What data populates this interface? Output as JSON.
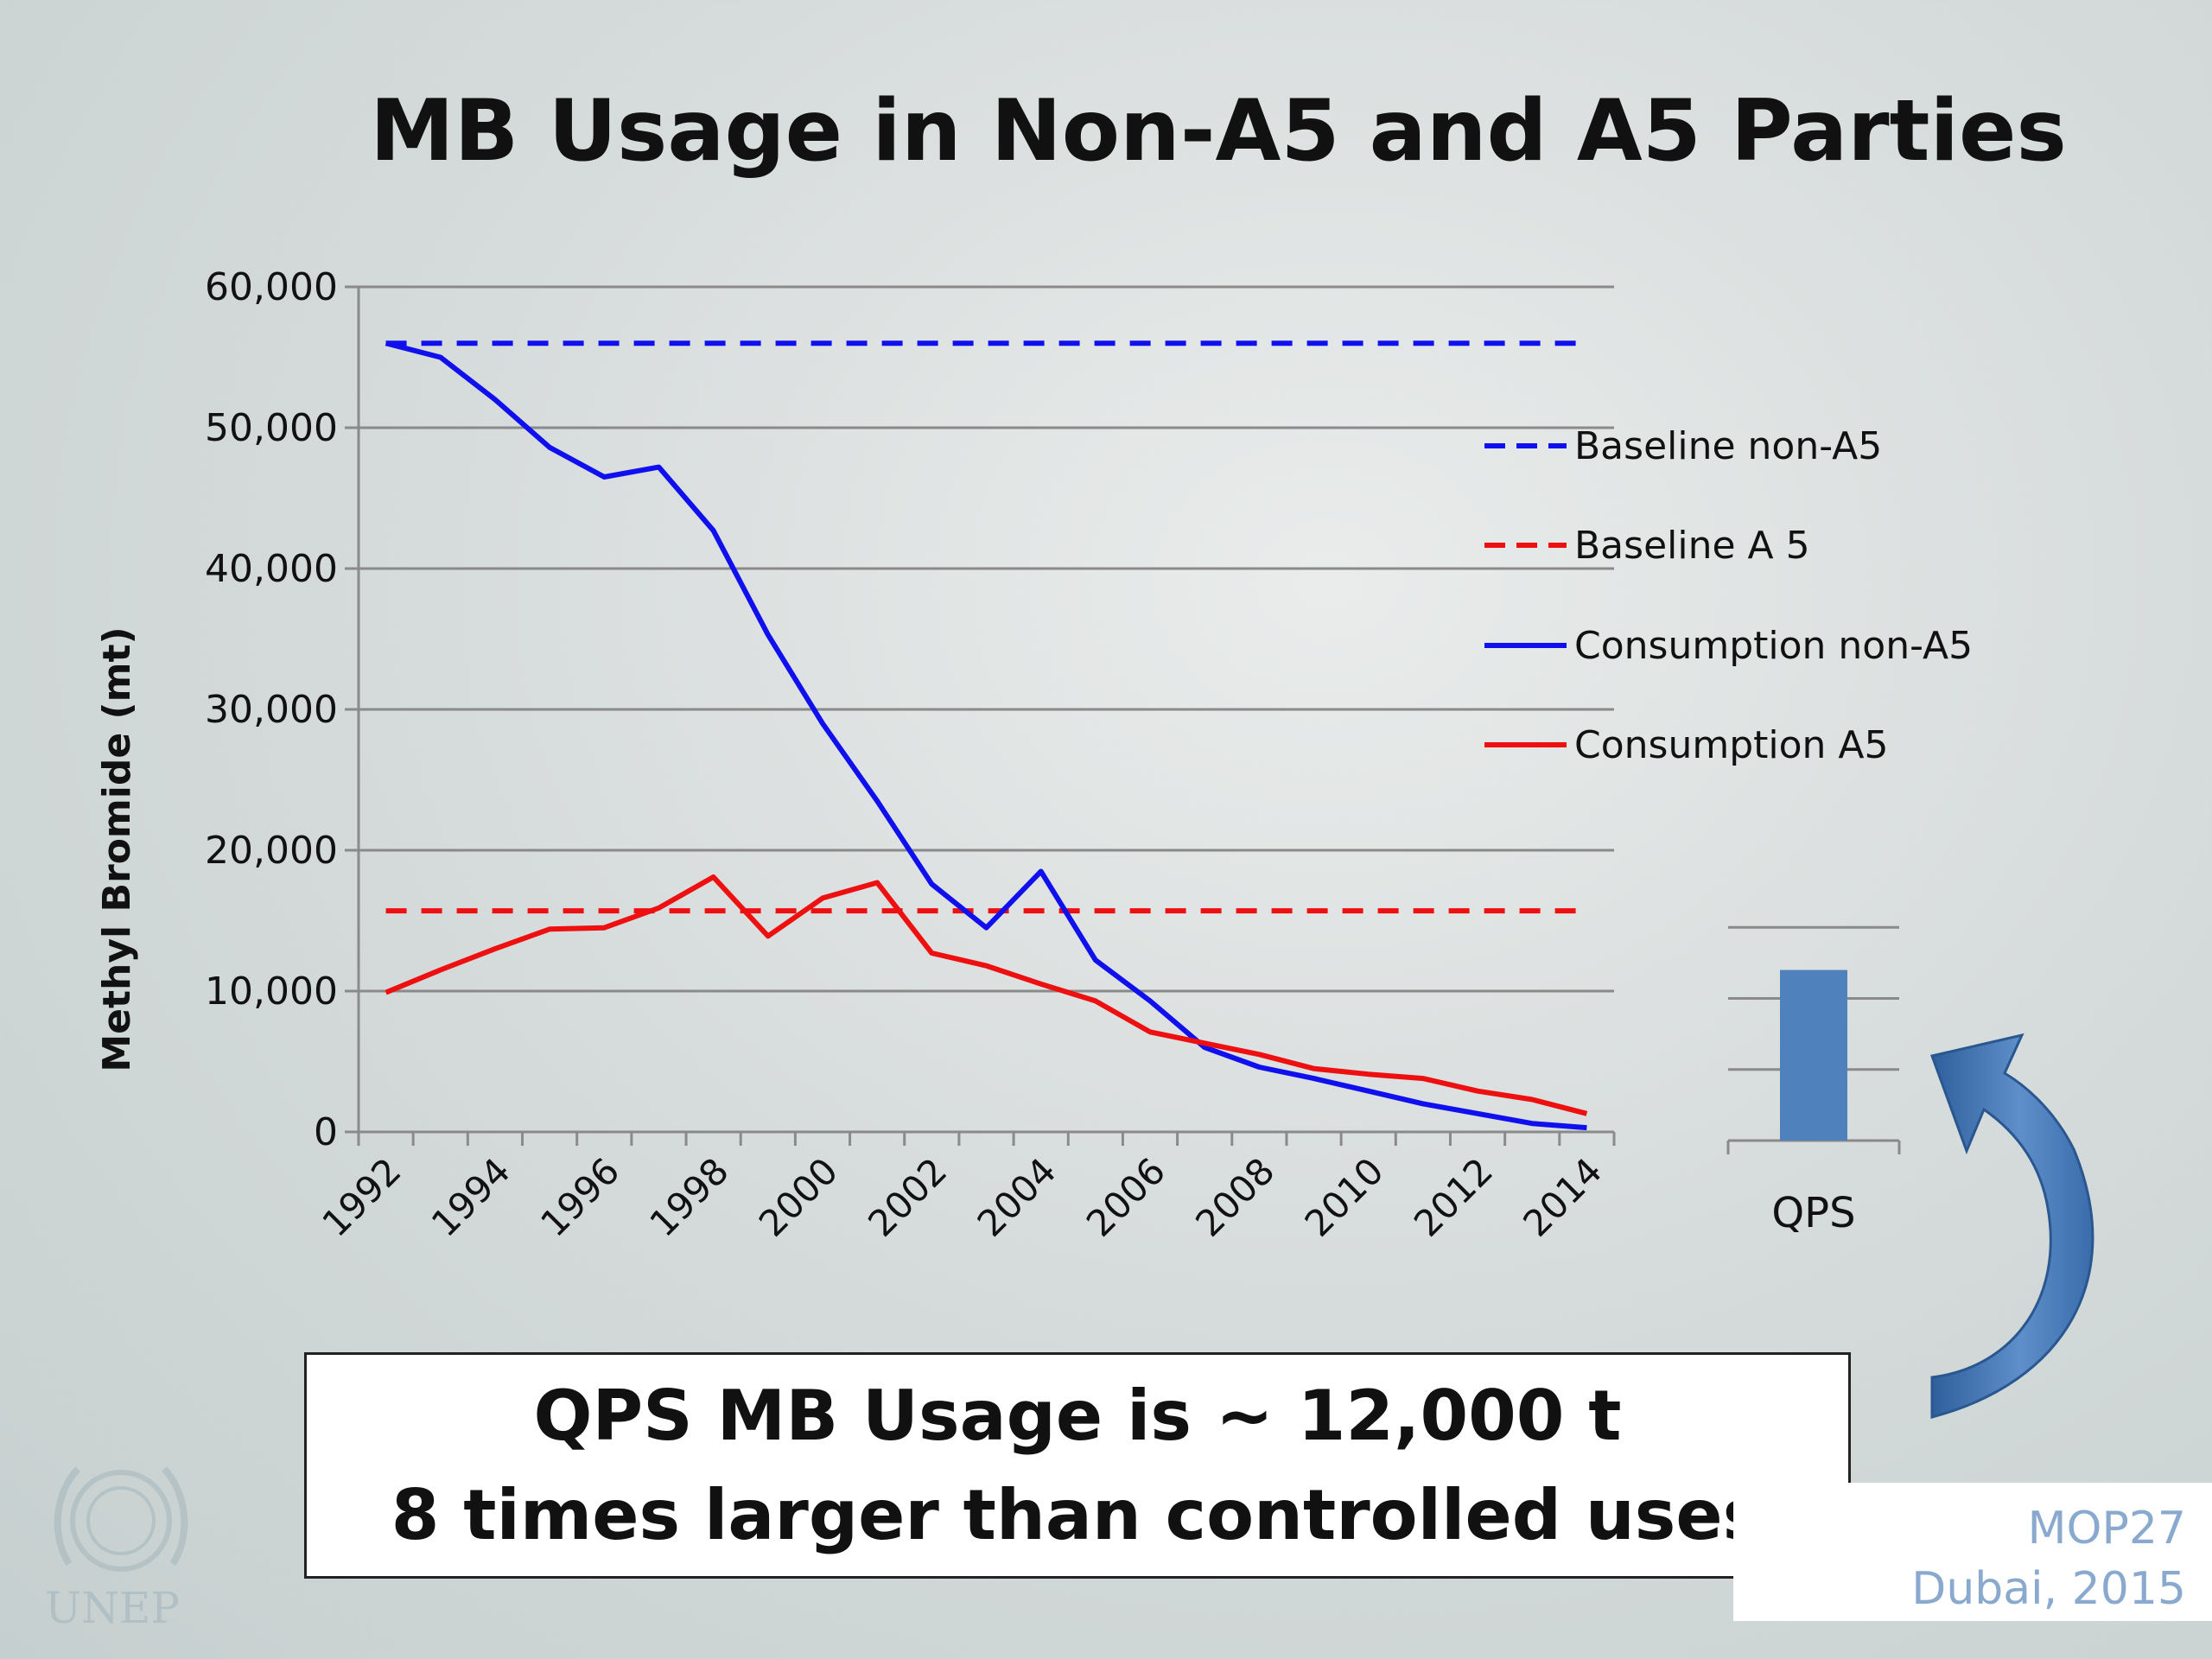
{
  "slide": {
    "title": "MB Usage in Non-A5 and A5 Parties",
    "callout_line1": "QPS MB Usage  is ~ 12,000 t",
    "callout_line2": "8 times larger than controlled uses",
    "footer_line1": "MOP27",
    "footer_line2": "Dubai, 2015",
    "logo_text": "UNEP"
  },
  "colors": {
    "blue": "#1010ee",
    "red": "#ee1010",
    "qps_bar": "#4f81bd",
    "grid": "#8a8a8a"
  },
  "chart_data": [
    {
      "type": "line",
      "title": "",
      "xlabel": "",
      "ylabel": "Methyl Bromide (mt)",
      "ylim": [
        0,
        60000
      ],
      "yticks": [
        "0",
        "10,000",
        "20,000",
        "30,000",
        "40,000",
        "50,000",
        "60,000"
      ],
      "x": [
        1992,
        1993,
        1994,
        1995,
        1996,
        1997,
        1998,
        1999,
        2000,
        2001,
        2002,
        2003,
        2004,
        2005,
        2006,
        2007,
        2008,
        2009,
        2010,
        2011,
        2012,
        2013,
        2014
      ],
      "xtick_labels": [
        "1992",
        "1994",
        "1996",
        "1998",
        "2000",
        "2002",
        "2004",
        "2006",
        "2008",
        "2010",
        "2012",
        "2014"
      ],
      "grid": true,
      "legend_position": "right",
      "series": [
        {
          "name": "Baseline non-A5",
          "style": "dashed",
          "color": "blue",
          "values": [
            56000,
            56000,
            56000,
            56000,
            56000,
            56000,
            56000,
            56000,
            56000,
            56000,
            56000,
            56000,
            56000,
            56000,
            56000,
            56000,
            56000,
            56000,
            56000,
            56000,
            56000,
            56000,
            56000
          ]
        },
        {
          "name": "Baseline A 5",
          "style": "dashed",
          "color": "red",
          "values": [
            15700,
            15700,
            15700,
            15700,
            15700,
            15700,
            15700,
            15700,
            15700,
            15700,
            15700,
            15700,
            15700,
            15700,
            15700,
            15700,
            15700,
            15700,
            15700,
            15700,
            15700,
            15700,
            15700
          ]
        },
        {
          "name": "Consumption non-A5",
          "style": "solid",
          "color": "blue",
          "values": [
            56000,
            55000,
            52000,
            48600,
            46500,
            47200,
            42700,
            35300,
            29000,
            23500,
            17600,
            14500,
            18500,
            12200,
            9300,
            6000,
            4600,
            3800,
            2900,
            2000,
            1300,
            600,
            300
          ]
        },
        {
          "name": "Consumption A5",
          "style": "solid",
          "color": "red",
          "values": [
            9900,
            11500,
            13000,
            14400,
            14500,
            15900,
            18100,
            13900,
            16600,
            17700,
            12700,
            11800,
            10500,
            9300,
            7100,
            6300,
            5500,
            4500,
            4100,
            3800,
            2900,
            2300,
            1300
          ]
        }
      ]
    },
    {
      "type": "bar",
      "categories": [
        "QPS"
      ],
      "values": [
        12000
      ],
      "ylim": [
        0,
        15500
      ]
    }
  ]
}
